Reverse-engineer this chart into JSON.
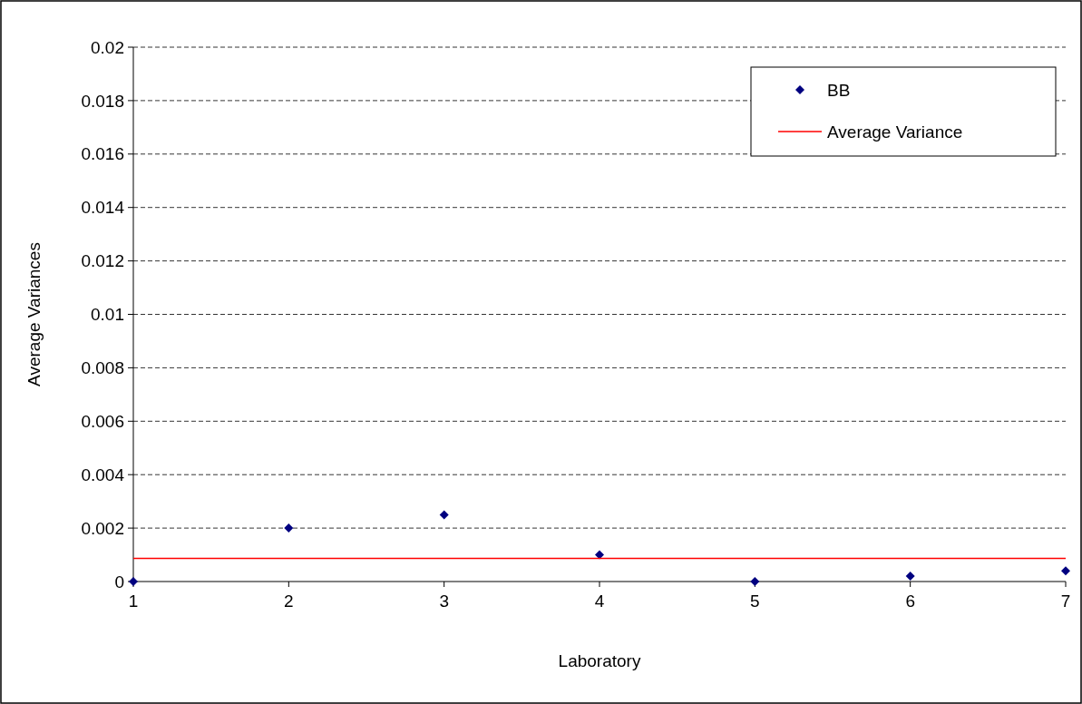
{
  "chart_data": {
    "type": "scatter",
    "xlabel": "Laboratory",
    "ylabel": "Average Variances",
    "xlim": [
      1,
      7
    ],
    "xticks": [
      1,
      2,
      3,
      4,
      5,
      6,
      7
    ],
    "ylim": [
      0,
      0.02
    ],
    "yticks": [
      0,
      0.002,
      0.004,
      0.006,
      0.008,
      0.01,
      0.012,
      0.014,
      0.016,
      0.018,
      0.02
    ],
    "grid": "y",
    "legend": "top right",
    "marker": "diamond",
    "series": [
      {
        "name": "BB",
        "color": "#000080",
        "x": [
          1,
          2,
          3,
          4,
          5,
          6,
          7
        ],
        "values": [
          0,
          0.002,
          0.0025,
          0.001,
          0,
          0.0002,
          0.0004
        ]
      },
      {
        "name": "Average Variance",
        "type": "line",
        "color": "#ff0000",
        "line_style": "solid",
        "marker": "none",
        "x": [
          1,
          7
        ],
        "values": [
          0.00087,
          0.00087
        ]
      }
    ]
  }
}
